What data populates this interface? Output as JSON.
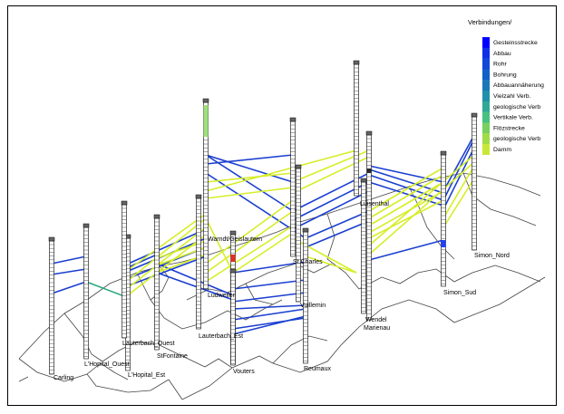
{
  "legend": {
    "title": "Verbindungen/",
    "items": [
      {
        "label": "Gesteinsstrecke",
        "color": "#0000ff"
      },
      {
        "label": "Abbau",
        "color": "#1030e8"
      },
      {
        "label": "Rohr",
        "color": "#1048d8"
      },
      {
        "label": "Bohrung",
        "color": "#1060c8"
      },
      {
        "label": "Abbauannäherung",
        "color": "#1878b8"
      },
      {
        "label": "Vielzahl Verb.",
        "color": "#2090a8"
      },
      {
        "label": "geologische Verb",
        "color": "#30a898"
      },
      {
        "label": "Vertikale Verb.",
        "color": "#48c080"
      },
      {
        "label": "Flözstrecke",
        "color": "#78d060"
      },
      {
        "label": "geologische Verb",
        "color": "#a0dc48"
      },
      {
        "label": "Damm",
        "color": "#c8e838"
      }
    ]
  },
  "shafts": [
    {
      "id": "carling",
      "label": "Carling"
    },
    {
      "id": "lhopital_ouest",
      "label": "L'Hopital_Ouest"
    },
    {
      "id": "lhopital_est",
      "label": "L'Hopital_Est"
    },
    {
      "id": "lauterbach_ouest",
      "label": "Lauterbach_Ouest"
    },
    {
      "id": "stfontaine",
      "label": "StFontaine"
    },
    {
      "id": "lauterbach_est",
      "label": "Lauterbach_Est"
    },
    {
      "id": "ludweiler",
      "label": "Ludweiler"
    },
    {
      "id": "warndt",
      "label": "Warndt/Geislautern"
    },
    {
      "id": "vouters",
      "label": "Vouters"
    },
    {
      "id": "st_charles",
      "label": "St.Charles"
    },
    {
      "id": "reumaux",
      "label": "Reumaux"
    },
    {
      "id": "vuillemin",
      "label": "Vuillemin"
    },
    {
      "id": "luisenthal",
      "label": "Luisenthal"
    },
    {
      "id": "wendel",
      "label": "Wendel"
    },
    {
      "id": "marienau",
      "label": "Marienau"
    },
    {
      "id": "simon_sud",
      "label": "Simon_Sud"
    },
    {
      "id": "simon_nord",
      "label": "Simon_Nord"
    }
  ]
}
